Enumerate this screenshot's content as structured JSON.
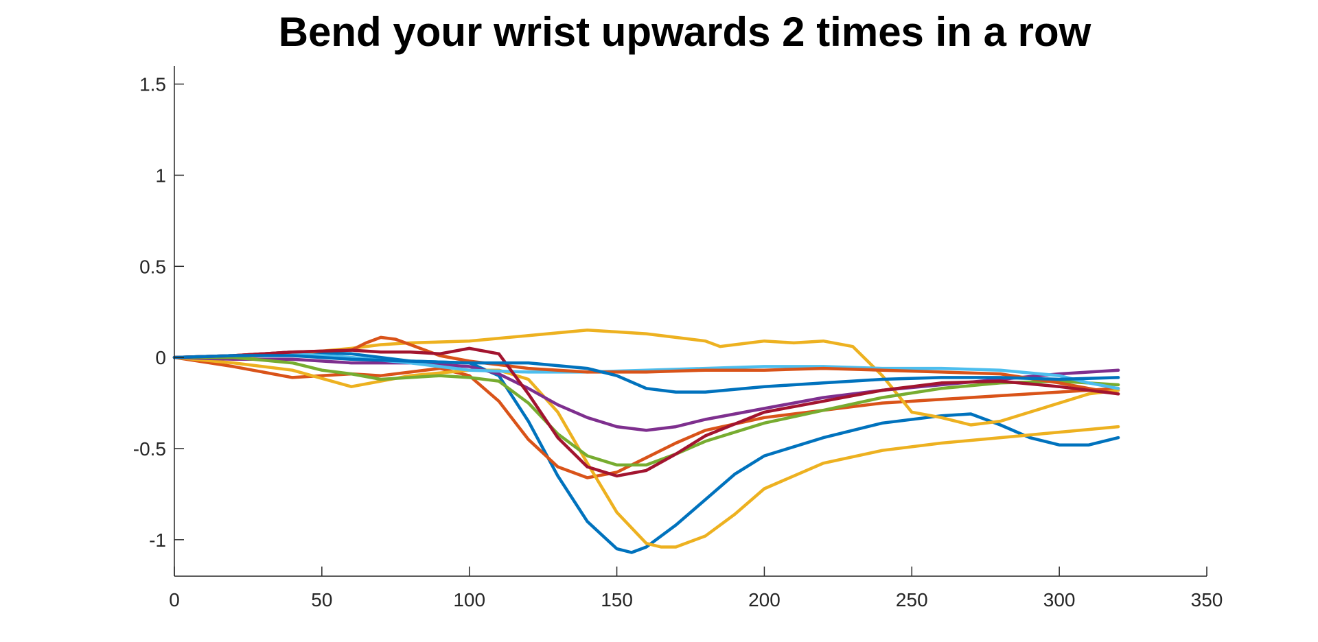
{
  "chart_data": {
    "type": "line",
    "title": "Bend your wrist upwards 2 times in a row",
    "xlabel": "",
    "ylabel": "",
    "xlim": [
      0,
      350
    ],
    "ylim": [
      -1.2,
      1.6
    ],
    "xticks": [
      0,
      50,
      100,
      150,
      200,
      250,
      300,
      350
    ],
    "yticks": [
      -1,
      -0.5,
      0,
      0.5,
      1,
      1.5
    ],
    "xtick_labels": [
      "0",
      "50",
      "100",
      "150",
      "200",
      "250",
      "300",
      "350"
    ],
    "ytick_labels": [
      "-1",
      "-0.5",
      "0",
      "0.5",
      "1",
      "1.5"
    ],
    "grid": false,
    "legend": "none",
    "colors": [
      "#0072BD",
      "#D95319",
      "#EDB120",
      "#7E2F8E",
      "#77AC30",
      "#4DBEEE",
      "#A2142F"
    ],
    "series": [
      {
        "color": "#0072BD",
        "x": [
          0,
          20,
          40,
          60,
          80,
          100,
          110,
          120,
          130,
          140,
          150,
          155,
          160,
          170,
          180,
          190,
          200,
          220,
          240,
          260,
          270,
          280,
          290,
          300,
          310,
          320
        ],
        "y": [
          0,
          0.01,
          0.03,
          0.02,
          -0.02,
          -0.03,
          -0.1,
          -0.35,
          -0.65,
          -0.9,
          -1.05,
          -1.07,
          -1.04,
          -0.92,
          -0.78,
          -0.64,
          -0.54,
          -0.44,
          -0.36,
          -0.32,
          -0.31,
          -0.37,
          -0.44,
          -0.48,
          -0.48,
          -0.44
        ]
      },
      {
        "color": "#D95319",
        "x": [
          0,
          20,
          40,
          60,
          70,
          80,
          90,
          100,
          110,
          120,
          130,
          140,
          150,
          160,
          170,
          180,
          200,
          220,
          240,
          260,
          280,
          300,
          320
        ],
        "y": [
          0,
          -0.05,
          -0.11,
          -0.09,
          -0.1,
          -0.08,
          -0.06,
          -0.1,
          -0.24,
          -0.45,
          -0.6,
          -0.66,
          -0.63,
          -0.55,
          -0.47,
          -0.4,
          -0.33,
          -0.29,
          -0.25,
          -0.23,
          -0.21,
          -0.19,
          -0.17
        ]
      },
      {
        "color": "#EDB120",
        "x": [
          0,
          20,
          40,
          60,
          80,
          100,
          110,
          120,
          130,
          140,
          150,
          160,
          165,
          170,
          180,
          190,
          200,
          220,
          240,
          260,
          280,
          300,
          320
        ],
        "y": [
          0,
          -0.03,
          -0.07,
          -0.16,
          -0.1,
          -0.07,
          -0.07,
          -0.12,
          -0.3,
          -0.58,
          -0.85,
          -1.02,
          -1.04,
          -1.04,
          -0.98,
          -0.86,
          -0.72,
          -0.58,
          -0.51,
          -0.47,
          -0.44,
          -0.41,
          -0.38
        ]
      },
      {
        "color": "#EDB120",
        "x": [
          0,
          20,
          40,
          60,
          70,
          80,
          100,
          120,
          140,
          150,
          160,
          170,
          180,
          185,
          190,
          200,
          210,
          220,
          230,
          240,
          250,
          260,
          270,
          280,
          290,
          300,
          310,
          320
        ],
        "y": [
          0,
          0,
          0.02,
          0.05,
          0.07,
          0.08,
          0.09,
          0.12,
          0.15,
          0.14,
          0.13,
          0.11,
          0.09,
          0.06,
          0.07,
          0.09,
          0.08,
          0.09,
          0.06,
          -0.1,
          -0.3,
          -0.33,
          -0.37,
          -0.35,
          -0.3,
          -0.25,
          -0.2,
          -0.18
        ]
      },
      {
        "color": "#7E2F8E",
        "x": [
          0,
          20,
          40,
          60,
          80,
          100,
          110,
          120,
          130,
          140,
          150,
          160,
          170,
          180,
          200,
          220,
          240,
          260,
          280,
          300,
          320
        ],
        "y": [
          0,
          -0.01,
          -0.01,
          -0.03,
          -0.03,
          -0.05,
          -0.09,
          -0.17,
          -0.26,
          -0.33,
          -0.38,
          -0.4,
          -0.38,
          -0.34,
          -0.28,
          -0.22,
          -0.18,
          -0.15,
          -0.12,
          -0.09,
          -0.07
        ]
      },
      {
        "color": "#77AC30",
        "x": [
          0,
          20,
          40,
          50,
          60,
          70,
          80,
          90,
          100,
          110,
          120,
          130,
          140,
          150,
          160,
          170,
          180,
          200,
          220,
          240,
          260,
          280,
          300,
          320
        ],
        "y": [
          0,
          0,
          -0.03,
          -0.07,
          -0.09,
          -0.12,
          -0.11,
          -0.1,
          -0.11,
          -0.13,
          -0.25,
          -0.42,
          -0.54,
          -0.59,
          -0.59,
          -0.53,
          -0.46,
          -0.36,
          -0.29,
          -0.22,
          -0.17,
          -0.14,
          -0.13,
          -0.15
        ]
      },
      {
        "color": "#4DBEEE",
        "x": [
          0,
          20,
          40,
          60,
          80,
          100,
          120,
          140,
          160,
          180,
          200,
          220,
          240,
          260,
          280,
          300,
          310,
          320
        ],
        "y": [
          0,
          0.01,
          0.02,
          0,
          -0.03,
          -0.07,
          -0.08,
          -0.08,
          -0.07,
          -0.06,
          -0.05,
          -0.05,
          -0.06,
          -0.06,
          -0.07,
          -0.1,
          -0.14,
          -0.17
        ]
      },
      {
        "color": "#D95319",
        "x": [
          0,
          20,
          40,
          60,
          65,
          70,
          75,
          80,
          90,
          100,
          120,
          140,
          160,
          180,
          200,
          220,
          240,
          260,
          280,
          300,
          320
        ],
        "y": [
          0,
          0.01,
          0.03,
          0.04,
          0.08,
          0.11,
          0.1,
          0.07,
          0.01,
          -0.02,
          -0.06,
          -0.08,
          -0.08,
          -0.07,
          -0.07,
          -0.06,
          -0.07,
          -0.08,
          -0.09,
          -0.14,
          -0.2
        ]
      },
      {
        "color": "#A2142F",
        "x": [
          0,
          20,
          40,
          60,
          70,
          80,
          90,
          100,
          110,
          120,
          130,
          140,
          150,
          160,
          170,
          180,
          200,
          220,
          240,
          260,
          280,
          300,
          320
        ],
        "y": [
          0,
          0.01,
          0.03,
          0.04,
          0.03,
          0.03,
          0.02,
          0.05,
          0.02,
          -0.2,
          -0.44,
          -0.6,
          -0.65,
          -0.62,
          -0.53,
          -0.43,
          -0.3,
          -0.24,
          -0.18,
          -0.14,
          -0.13,
          -0.16,
          -0.2
        ]
      },
      {
        "color": "#0072BD",
        "x": [
          0,
          20,
          40,
          60,
          80,
          100,
          120,
          140,
          150,
          160,
          170,
          180,
          200,
          220,
          240,
          260,
          280,
          300,
          320
        ],
        "y": [
          0,
          0.01,
          0.01,
          -0.01,
          -0.02,
          -0.03,
          -0.03,
          -0.06,
          -0.1,
          -0.17,
          -0.19,
          -0.19,
          -0.16,
          -0.14,
          -0.12,
          -0.11,
          -0.11,
          -0.12,
          -0.11
        ]
      }
    ]
  }
}
